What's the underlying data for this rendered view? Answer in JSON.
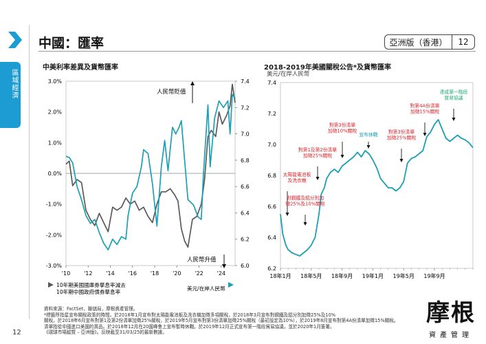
{
  "header": {
    "title": "中國：匯率",
    "badge_region": "亞洲版（香港）",
    "page_num": "12"
  },
  "side_tab": {
    "label": "區域經濟"
  },
  "colors": {
    "accent": "#1d9cd3",
    "teal": "#1a9fb4",
    "grey": "#595959",
    "red": "#d7252c"
  },
  "icons": {
    "chevron": "chevron-right-icon",
    "logo": "jpmorgan-asset-management-logo"
  },
  "footer": {
    "page_number": "12",
    "notes": [
      "資料來源：FactSet，聯儲局，摩根資產管理。",
      "*標籤所指星宣布關稅政策的時間。於2018年1月宣布對太陽能電池板及洗衣機加徵多項關稅，於2018年3月宣布對鋼鐵及鋁分別加徵25%及10%",
      "關稅，於2018年6月宣布對第1及第2份清單加徵25%關稅，於2019年5月宣布對第3份清單加徵25%關稅（最初設定為10%），於2019年8月宣布對第4A份清單加徵15%關稅。",
      "清單指從中國進口美國的貨品。於2018年12月在20國峰會上宣布暫時休戰。於2019年12月正式宣布第一階段貿易協議，並於2020年1月簽署。",
      "《環球市場縱覽 – 亞洲版》。反映截至31/03/25的最新數據。"
    ]
  },
  "logo": {
    "main": "摩根",
    "sub": "資產管理"
  },
  "chart_data": [
    {
      "type": "line",
      "title": "中美利率差異及貨幣匯率",
      "x_ticks": [
        "'10",
        "'12",
        "'14",
        "'16",
        "'18",
        "'20",
        "'22",
        "'24"
      ],
      "xlim": [
        2010,
        2025.25
      ],
      "y_left": {
        "ticks": [
          "3.0%",
          "2.0%",
          "1.0%",
          "0.0%",
          "-1.0%",
          "-2.0%",
          "-3.0%"
        ],
        "range": [
          -3.0,
          3.0
        ]
      },
      "y_right": {
        "ticks": [
          "7.4",
          "7.2",
          "7.0",
          "6.8",
          "6.6",
          "6.4",
          "6.2",
          "6.0"
        ],
        "range": [
          6.0,
          7.4
        ]
      },
      "annotations": {
        "top": "人民幣貶值",
        "bottom": "人民幣升值"
      },
      "series": [
        {
          "name": "10年期美國國庫券孳息率減去10年期中國政府債券孳息率",
          "axis": "left",
          "color": "#595959",
          "x": [
            2010.0,
            2010.3,
            2010.6,
            2011.0,
            2011.4,
            2011.8,
            2012.2,
            2012.6,
            2013.0,
            2013.4,
            2013.8,
            2014.2,
            2014.6,
            2015.0,
            2015.4,
            2015.8,
            2016.2,
            2016.6,
            2017.0,
            2017.4,
            2017.8,
            2018.2,
            2018.6,
            2019.0,
            2019.4,
            2019.8,
            2020.1,
            2020.4,
            2020.7,
            2021.0,
            2021.4,
            2021.8,
            2022.2,
            2022.5,
            2022.8,
            2023.1,
            2023.5,
            2023.8,
            2024.1,
            2024.5,
            2024.8,
            2025.0,
            2025.25
          ],
          "values": [
            0.3,
            0.4,
            -0.4,
            -0.2,
            -0.3,
            -1.2,
            -1.5,
            -1.7,
            -1.3,
            -1.6,
            -1.9,
            -1.1,
            -1.2,
            -1.1,
            -0.8,
            -1.0,
            -0.9,
            -1.2,
            -1.1,
            -1.4,
            -1.6,
            -1.0,
            -0.6,
            -0.6,
            -0.5,
            -0.7,
            -0.9,
            -1.8,
            -2.2,
            -2.4,
            -1.5,
            -1.4,
            -1.0,
            -0.2,
            1.2,
            1.4,
            1.2,
            2.0,
            1.6,
            1.9,
            2.2,
            2.9,
            2.3
          ]
        },
        {
          "name": "美元/在岸人民幣",
          "axis": "right",
          "color": "#1a9fb4",
          "x": [
            2010.0,
            2010.3,
            2010.6,
            2011.0,
            2011.4,
            2011.8,
            2012.2,
            2012.6,
            2013.0,
            2013.4,
            2013.8,
            2014.2,
            2014.6,
            2015.0,
            2015.4,
            2015.6,
            2016.0,
            2016.4,
            2016.8,
            2017.0,
            2017.4,
            2017.8,
            2018.2,
            2018.6,
            2018.9,
            2019.2,
            2019.6,
            2019.9,
            2020.2,
            2020.4,
            2020.7,
            2021.0,
            2021.5,
            2021.9,
            2022.2,
            2022.4,
            2022.8,
            2023.0,
            2023.4,
            2023.8,
            2024.2,
            2024.6,
            2024.8,
            2025.0,
            2025.25
          ],
          "values": [
            6.83,
            6.82,
            6.78,
            6.6,
            6.5,
            6.38,
            6.32,
            6.35,
            6.25,
            6.17,
            6.12,
            6.2,
            6.16,
            6.22,
            6.2,
            6.38,
            6.55,
            6.6,
            6.75,
            6.88,
            6.85,
            6.62,
            6.3,
            6.75,
            6.95,
            6.72,
            7.05,
            7.0,
            7.05,
            7.1,
            6.8,
            6.5,
            6.46,
            6.37,
            6.35,
            6.7,
            7.22,
            6.75,
            7.12,
            7.25,
            7.2,
            7.25,
            7.0,
            7.3,
            7.27
          ]
        }
      ],
      "legend": [
        "10年期美國國庫券孳息率減去",
        "10年期中國政府債券孳息率",
        "美元/在岸人民幣"
      ]
    },
    {
      "type": "line",
      "title": "2018-2019年美國關稅公告*及貨幣匯率",
      "subtitle": "美元/在岸人民幣",
      "x_ticks": [
        "18年1月",
        "18年5月",
        "18年9月",
        "19年1月",
        "19年5月",
        "19年9月"
      ],
      "xlim": [
        0,
        25
      ],
      "ylim": [
        6.2,
        7.4
      ],
      "y_ticks": [
        "7.4",
        "7.2",
        "7.0",
        "6.8",
        "6.6",
        "6.4",
        "6.2"
      ],
      "series": [
        {
          "name": "美元/在岸人民幣",
          "color": "#1a9fb4",
          "x": [
            0.0,
            0.3,
            0.7,
            1.0,
            1.5,
            2.0,
            2.5,
            3.0,
            3.5,
            4.0,
            4.5,
            5.0,
            5.3,
            5.7,
            6.0,
            6.5,
            7.0,
            7.5,
            8.0,
            8.5,
            9.0,
            9.5,
            10.0,
            10.5,
            11.0,
            11.5,
            12.0,
            12.5,
            13.0,
            13.5,
            14.0,
            14.5,
            15.0,
            15.5,
            16.0,
            16.5,
            17.0,
            17.5,
            18.0,
            18.5,
            19.0,
            19.5,
            20.0,
            20.5,
            21.0,
            21.5,
            22.0,
            22.5,
            23.0,
            23.5,
            24.0,
            24.5,
            25.0
          ],
          "values": [
            6.55,
            6.42,
            6.35,
            6.32,
            6.3,
            6.29,
            6.28,
            6.3,
            6.32,
            6.35,
            6.4,
            6.55,
            6.68,
            6.72,
            6.78,
            6.82,
            6.84,
            6.82,
            6.86,
            6.88,
            6.9,
            6.92,
            6.95,
            6.92,
            6.96,
            6.94,
            6.9,
            6.85,
            6.78,
            6.75,
            6.72,
            6.72,
            6.7,
            6.72,
            6.76,
            6.88,
            6.91,
            6.92,
            6.94,
            6.96,
            7.05,
            7.08,
            7.13,
            7.16,
            7.1,
            7.04,
            7.02,
            7.04,
            7.06,
            7.04,
            7.03,
            7.01,
            6.98
          ]
        }
      ],
      "annotations": [
        {
          "text": "太陽能電池板\n及洗衣機",
          "color": "#d7252c"
        },
        {
          "text": "對鋼鐵及鋁分別加\n徵25%及10%關稅",
          "color": "#d7252c"
        },
        {
          "text": "對第1及第2份清單\n加徵25%關稅",
          "color": "#d7252c"
        },
        {
          "text": "對第3份清單\n加徵10%關稅",
          "color": "#d7252c"
        },
        {
          "text": "宣布休戰",
          "color": "#1a9fb4"
        },
        {
          "text": "對第3份清單\n加徵25%關稅",
          "color": "#d7252c"
        },
        {
          "text": "對第4A份清單\n加徵15%關稅",
          "color": "#d7252c"
        },
        {
          "text": "達成第一階段\n貿易協議",
          "color": "#1aaa74"
        }
      ]
    }
  ]
}
